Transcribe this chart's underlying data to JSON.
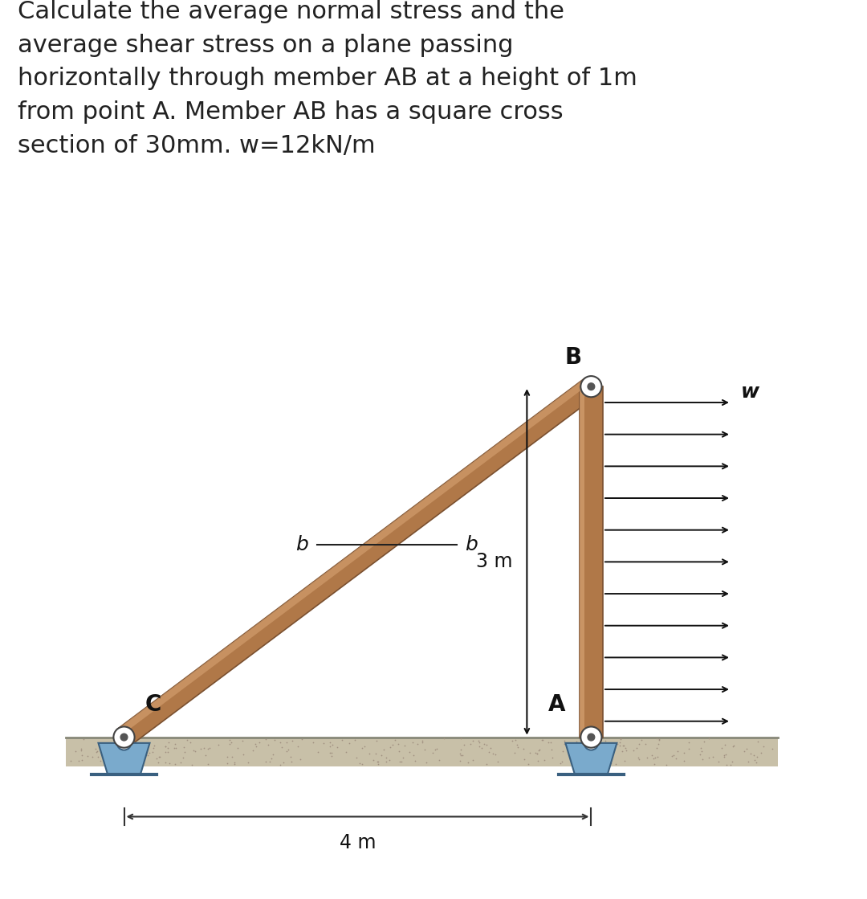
{
  "title_text": "Calculate the average normal stress and the\naverage shear stress on a plane passing\nhorizontally through member AB at a height of 1m\nfrom point A. Member AB has a square cross\nsection of 30mm. w=12kN/m",
  "title_fontsize": 22,
  "title_color": "#222222",
  "panel_bg": "#d4d4d8",
  "beam_main": "#b07848",
  "beam_light": "#d4a070",
  "beam_dark": "#7a5030",
  "C": [
    0.0,
    0.0
  ],
  "A": [
    4.0,
    0.0
  ],
  "B": [
    4.0,
    3.0
  ],
  "arrow_color": "#111111",
  "label_fontsize": 18,
  "dim_fontsize": 17,
  "support_color": "#7aaacc",
  "support_dark": "#3a6080",
  "n_arrows": 11,
  "dim_3m": "3 m",
  "dim_4m": "4 m",
  "w_label": "w",
  "ground_top": "#c0b898",
  "ground_dot": "#a09080"
}
